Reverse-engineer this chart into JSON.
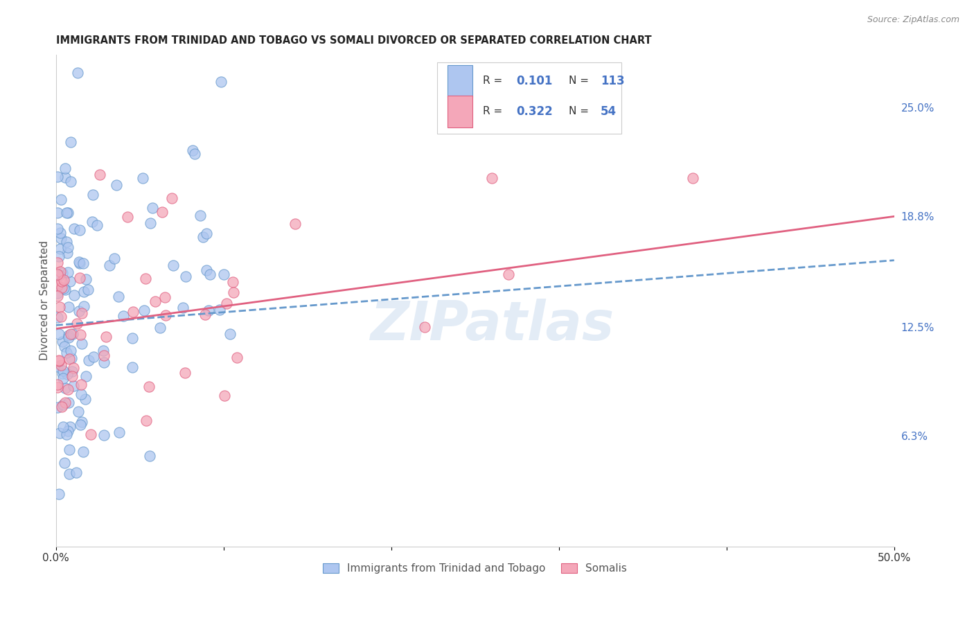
{
  "title": "IMMIGRANTS FROM TRINIDAD AND TOBAGO VS SOMALI DIVORCED OR SEPARATED CORRELATION CHART",
  "source": "Source: ZipAtlas.com",
  "ylabel": "Divorced or Separated",
  "series1_label": "Immigrants from Trinidad and Tobago",
  "series2_label": "Somalis",
  "series1_color": "#aec6f0",
  "series2_color": "#f4a7b9",
  "series1_edge_color": "#6699cc",
  "series2_edge_color": "#e06080",
  "series1_line_color": "#6699cc",
  "series2_line_color": "#e06080",
  "trendline1_x": [
    0.0,
    0.5
  ],
  "trendline1_y": [
    0.126,
    0.163
  ],
  "trendline2_x": [
    0.0,
    0.5
  ],
  "trendline2_y": [
    0.124,
    0.188
  ],
  "xlim": [
    0.0,
    0.5
  ],
  "ylim": [
    0.0,
    0.28
  ],
  "x_tick_positions": [
    0.0,
    0.1,
    0.2,
    0.3,
    0.4,
    0.5
  ],
  "x_tick_labels": [
    "0.0%",
    "",
    "",
    "",
    "",
    "50.0%"
  ],
  "y_ticks_right": [
    0.063,
    0.125,
    0.188,
    0.25
  ],
  "y_tick_labels_right": [
    "6.3%",
    "12.5%",
    "18.8%",
    "25.0%"
  ],
  "watermark": "ZIPatlas",
  "background_color": "#ffffff",
  "grid_color": "#dddddd",
  "title_color": "#222222",
  "axis_label_color": "#4472c4",
  "legend_R1": "0.101",
  "legend_N1": "113",
  "legend_R2": "0.322",
  "legend_N2": "54"
}
